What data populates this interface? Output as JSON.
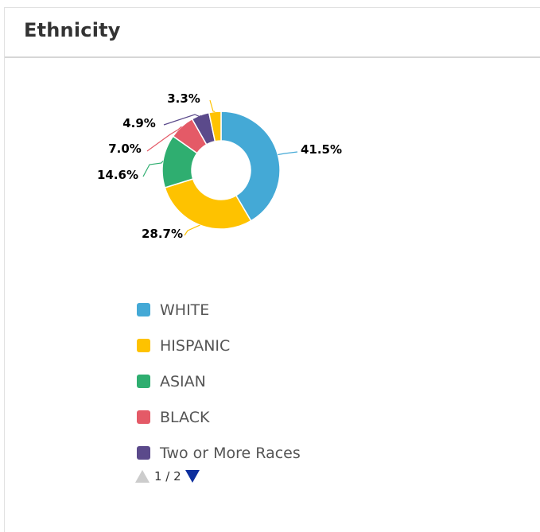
{
  "card": {
    "title": "Ethnicity"
  },
  "chart_data": {
    "type": "pie",
    "variant": "donut",
    "categories": [
      "WHITE",
      "HISPANIC",
      "ASIAN",
      "BLACK",
      "Two or More Races",
      ""
    ],
    "values": [
      41.5,
      28.7,
      14.6,
      7.0,
      4.9,
      3.3
    ],
    "labels": [
      "41.5%",
      "28.7%",
      "14.6%",
      "7.0%",
      "4.9%",
      "3.3%"
    ],
    "colors": [
      "#44a9d6",
      "#fec200",
      "#2fae70",
      "#e45a67",
      "#5b4a8b",
      "#fec200"
    ],
    "legend": {
      "placement": "bottom",
      "items": [
        {
          "label": "WHITE",
          "color": "#44a9d6"
        },
        {
          "label": "HISPANIC",
          "color": "#fec200"
        },
        {
          "label": "ASIAN",
          "color": "#2fae70"
        },
        {
          "label": "BLACK",
          "color": "#e45a67"
        },
        {
          "label": "Two or More Races",
          "color": "#5b4a8b"
        }
      ]
    }
  },
  "pager": {
    "text": "1 / 2",
    "prev_icon": "triangle-up-icon",
    "next_icon": "triangle-down-icon",
    "prev_color": "#cccccc",
    "next_color": "#0d2f9e"
  }
}
